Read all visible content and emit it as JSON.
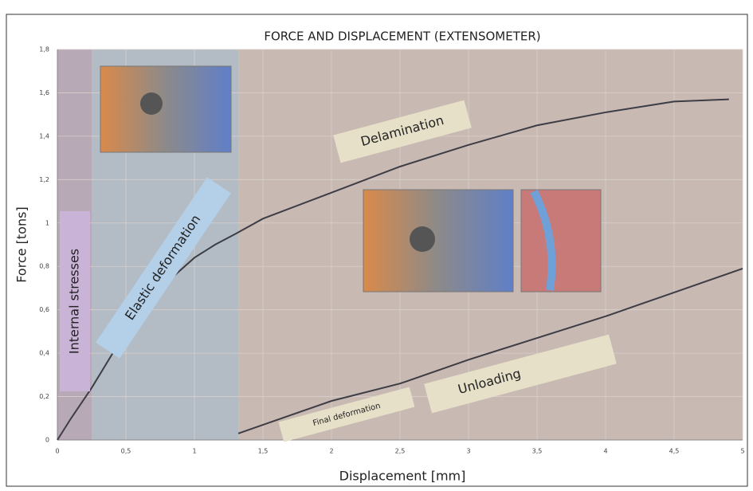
{
  "chart_data": {
    "type": "line",
    "title": "FORCE AND DISPLACEMENT (EXTENSOMETER)",
    "x_label": "Displacement [mm]",
    "y_label": "Force [tons]",
    "xlim": [
      0,
      5
    ],
    "ylim": [
      0,
      1.8
    ],
    "xticks": [
      0,
      {
        "value": 0.5,
        "label": "0,5"
      },
      1,
      {
        "value": 1.5,
        "label": "1,5"
      },
      2,
      {
        "value": 2.5,
        "label": "2,5"
      },
      3,
      {
        "value": 3.5,
        "label": "3,5"
      },
      4,
      {
        "value": 4.5,
        "label": "4,5"
      },
      5
    ],
    "yticks": [
      0,
      {
        "value": 0.2,
        "label": "0,2"
      },
      {
        "value": 0.4,
        "label": "0,4"
      },
      {
        "value": 0.6,
        "label": "0,6"
      },
      {
        "value": 0.8,
        "label": "0,8"
      },
      1,
      {
        "value": 1.2,
        "label": "1,2"
      },
      {
        "value": 1.4,
        "label": "1,4"
      },
      {
        "value": 1.6,
        "label": "1,6"
      },
      {
        "value": 1.8,
        "label": "1,8"
      }
    ],
    "grid": true,
    "regions": [
      {
        "xlim": [
          0,
          0.25
        ],
        "color": "#b7a9b6"
      },
      {
        "xlim": [
          0.25,
          1.32
        ],
        "color": "#b3bcc4"
      },
      {
        "xlim": [
          1.32,
          5
        ],
        "color": "#c9b9b3"
      }
    ],
    "series": [
      {
        "color": "#3d3d45",
        "x": [
          0,
          0.1,
          0.25,
          0.5,
          0.75,
          1.0,
          1.15,
          1.3,
          1.5,
          2.0,
          2.5,
          3.0,
          3.5,
          4.0,
          4.5,
          4.9
        ],
        "values": [
          0,
          0.1,
          0.24,
          0.5,
          0.7,
          0.84,
          0.9,
          0.95,
          1.02,
          1.14,
          1.26,
          1.36,
          1.45,
          1.51,
          1.56,
          1.57
        ]
      },
      {
        "color": "#3d3d45",
        "x": [
          1.32,
          2.0,
          2.5,
          3.0,
          3.5,
          4.0,
          4.5,
          5.0
        ],
        "values": [
          0.03,
          0.18,
          0.26,
          0.37,
          0.47,
          0.57,
          0.68,
          0.79
        ]
      }
    ],
    "annotations": [
      "Internal stresses",
      "Elastic deformation",
      "Delamination",
      "Final deformation",
      "Unloading"
    ]
  }
}
